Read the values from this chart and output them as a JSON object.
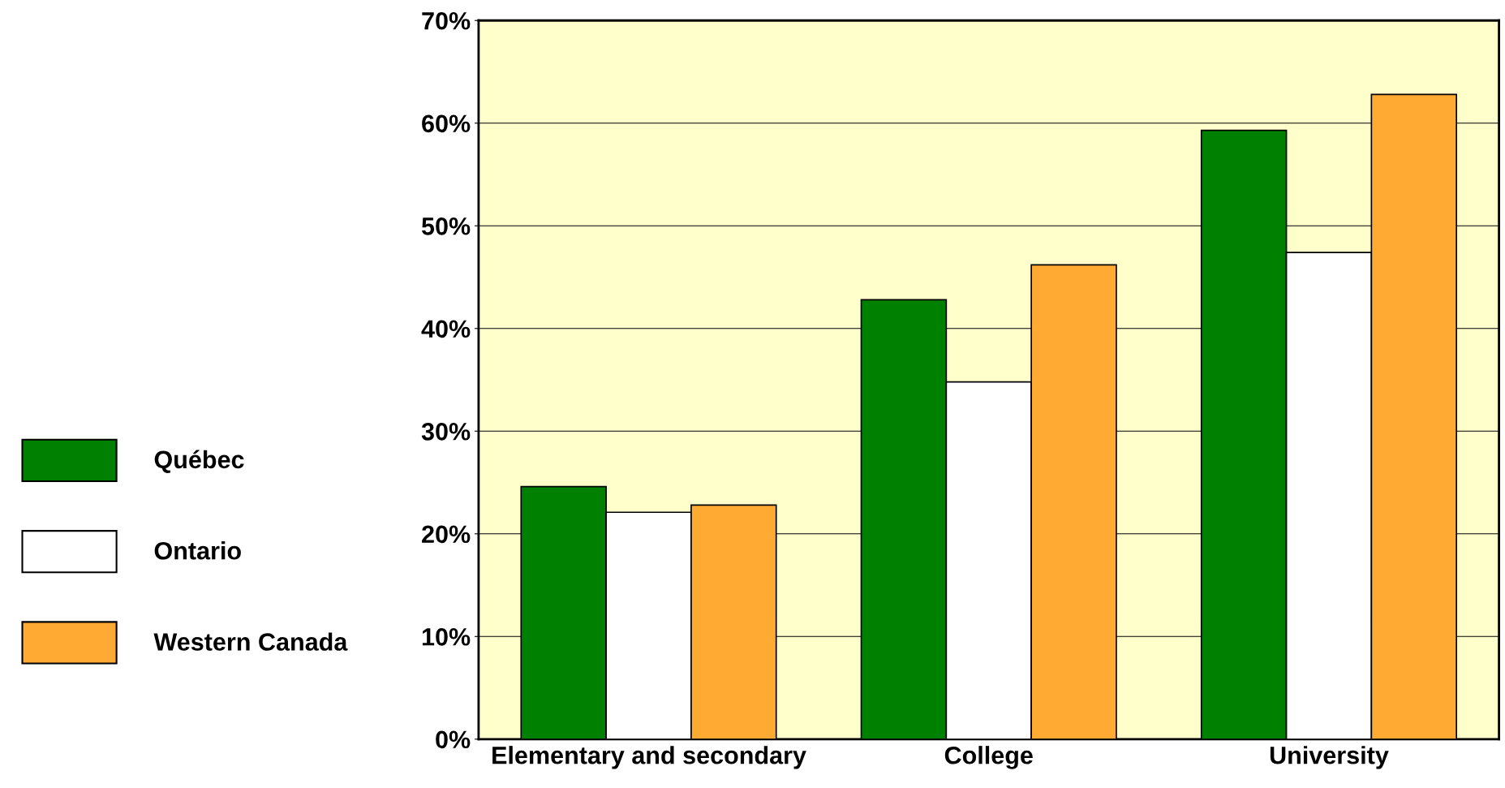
{
  "chart_data": {
    "type": "bar",
    "categories": [
      "Elementary and secondary",
      "College",
      "University"
    ],
    "series": [
      {
        "name": "Québec",
        "color": "#008000",
        "values": [
          24.6,
          42.8,
          59.3
        ]
      },
      {
        "name": "Ontario",
        "color": "#ffffff",
        "values": [
          22.1,
          34.8,
          47.4
        ]
      },
      {
        "name": "Western Canada",
        "color": "#ffaa33",
        "values": [
          22.8,
          46.2,
          62.8
        ]
      }
    ],
    "ylim": [
      0,
      70
    ],
    "yticks": [
      {
        "value": 0,
        "label": "0%"
      },
      {
        "value": 10,
        "label": "10%"
      },
      {
        "value": 20,
        "label": "20%"
      },
      {
        "value": 30,
        "label": "30%"
      },
      {
        "value": 40,
        "label": "40%"
      },
      {
        "value": 50,
        "label": "50%"
      },
      {
        "value": 60,
        "label": "60%"
      },
      {
        "value": 70,
        "label": "70%"
      }
    ],
    "grid": "y",
    "legend": "left"
  }
}
